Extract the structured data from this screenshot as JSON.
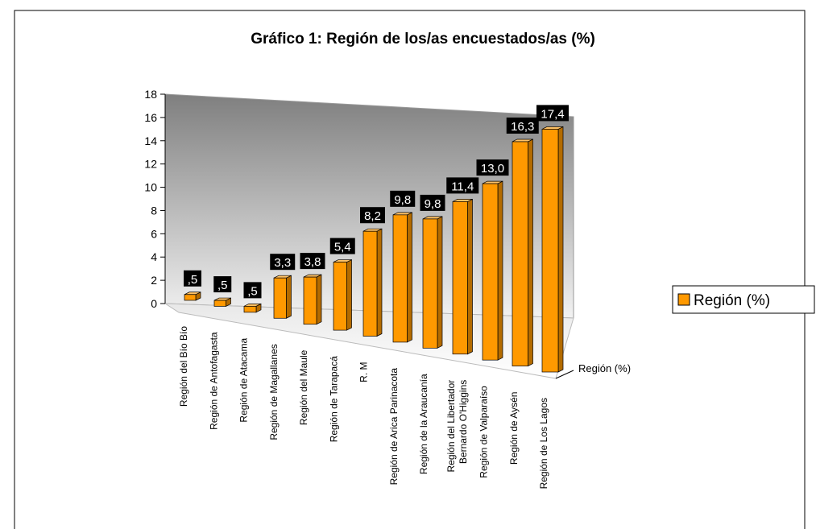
{
  "chart_data": {
    "type": "bar3d",
    "title": "Gráfico 1: Región de los/as encuestados/as (%)",
    "categories": [
      "Región del Bío Bío",
      "Región de Antofagasta",
      "Región de Atacama",
      "Región de Magallanes",
      "Región del Maule",
      "Región de Tarapacá",
      "R. M",
      "Región de Arica Parinacota",
      "Región  de la Araucanía",
      "Región  del Libertador\nBernardo O'Higgins",
      "Región de Valparaíso",
      "Región de Aysén",
      "Región  de Los Lagos"
    ],
    "series": [
      {
        "name": "Región (%)",
        "color": "#ff9900",
        "values": [
          0.5,
          0.5,
          0.5,
          3.3,
          3.8,
          5.4,
          8.2,
          9.8,
          9.8,
          11.4,
          13.0,
          16.3,
          17.4
        ],
        "value_labels": [
          ",5",
          ",5",
          ",5",
          "3,3",
          "3,8",
          "5,4",
          "8,2",
          "9,8",
          "9,8",
          "11,4",
          "13,0",
          "16,3",
          "17,4"
        ]
      }
    ],
    "depth_axis_label": "Región (%)",
    "ylim": [
      0,
      18
    ],
    "yticks": [
      0,
      2,
      4,
      6,
      8,
      10,
      12,
      14,
      16,
      18
    ],
    "legend": "right"
  }
}
